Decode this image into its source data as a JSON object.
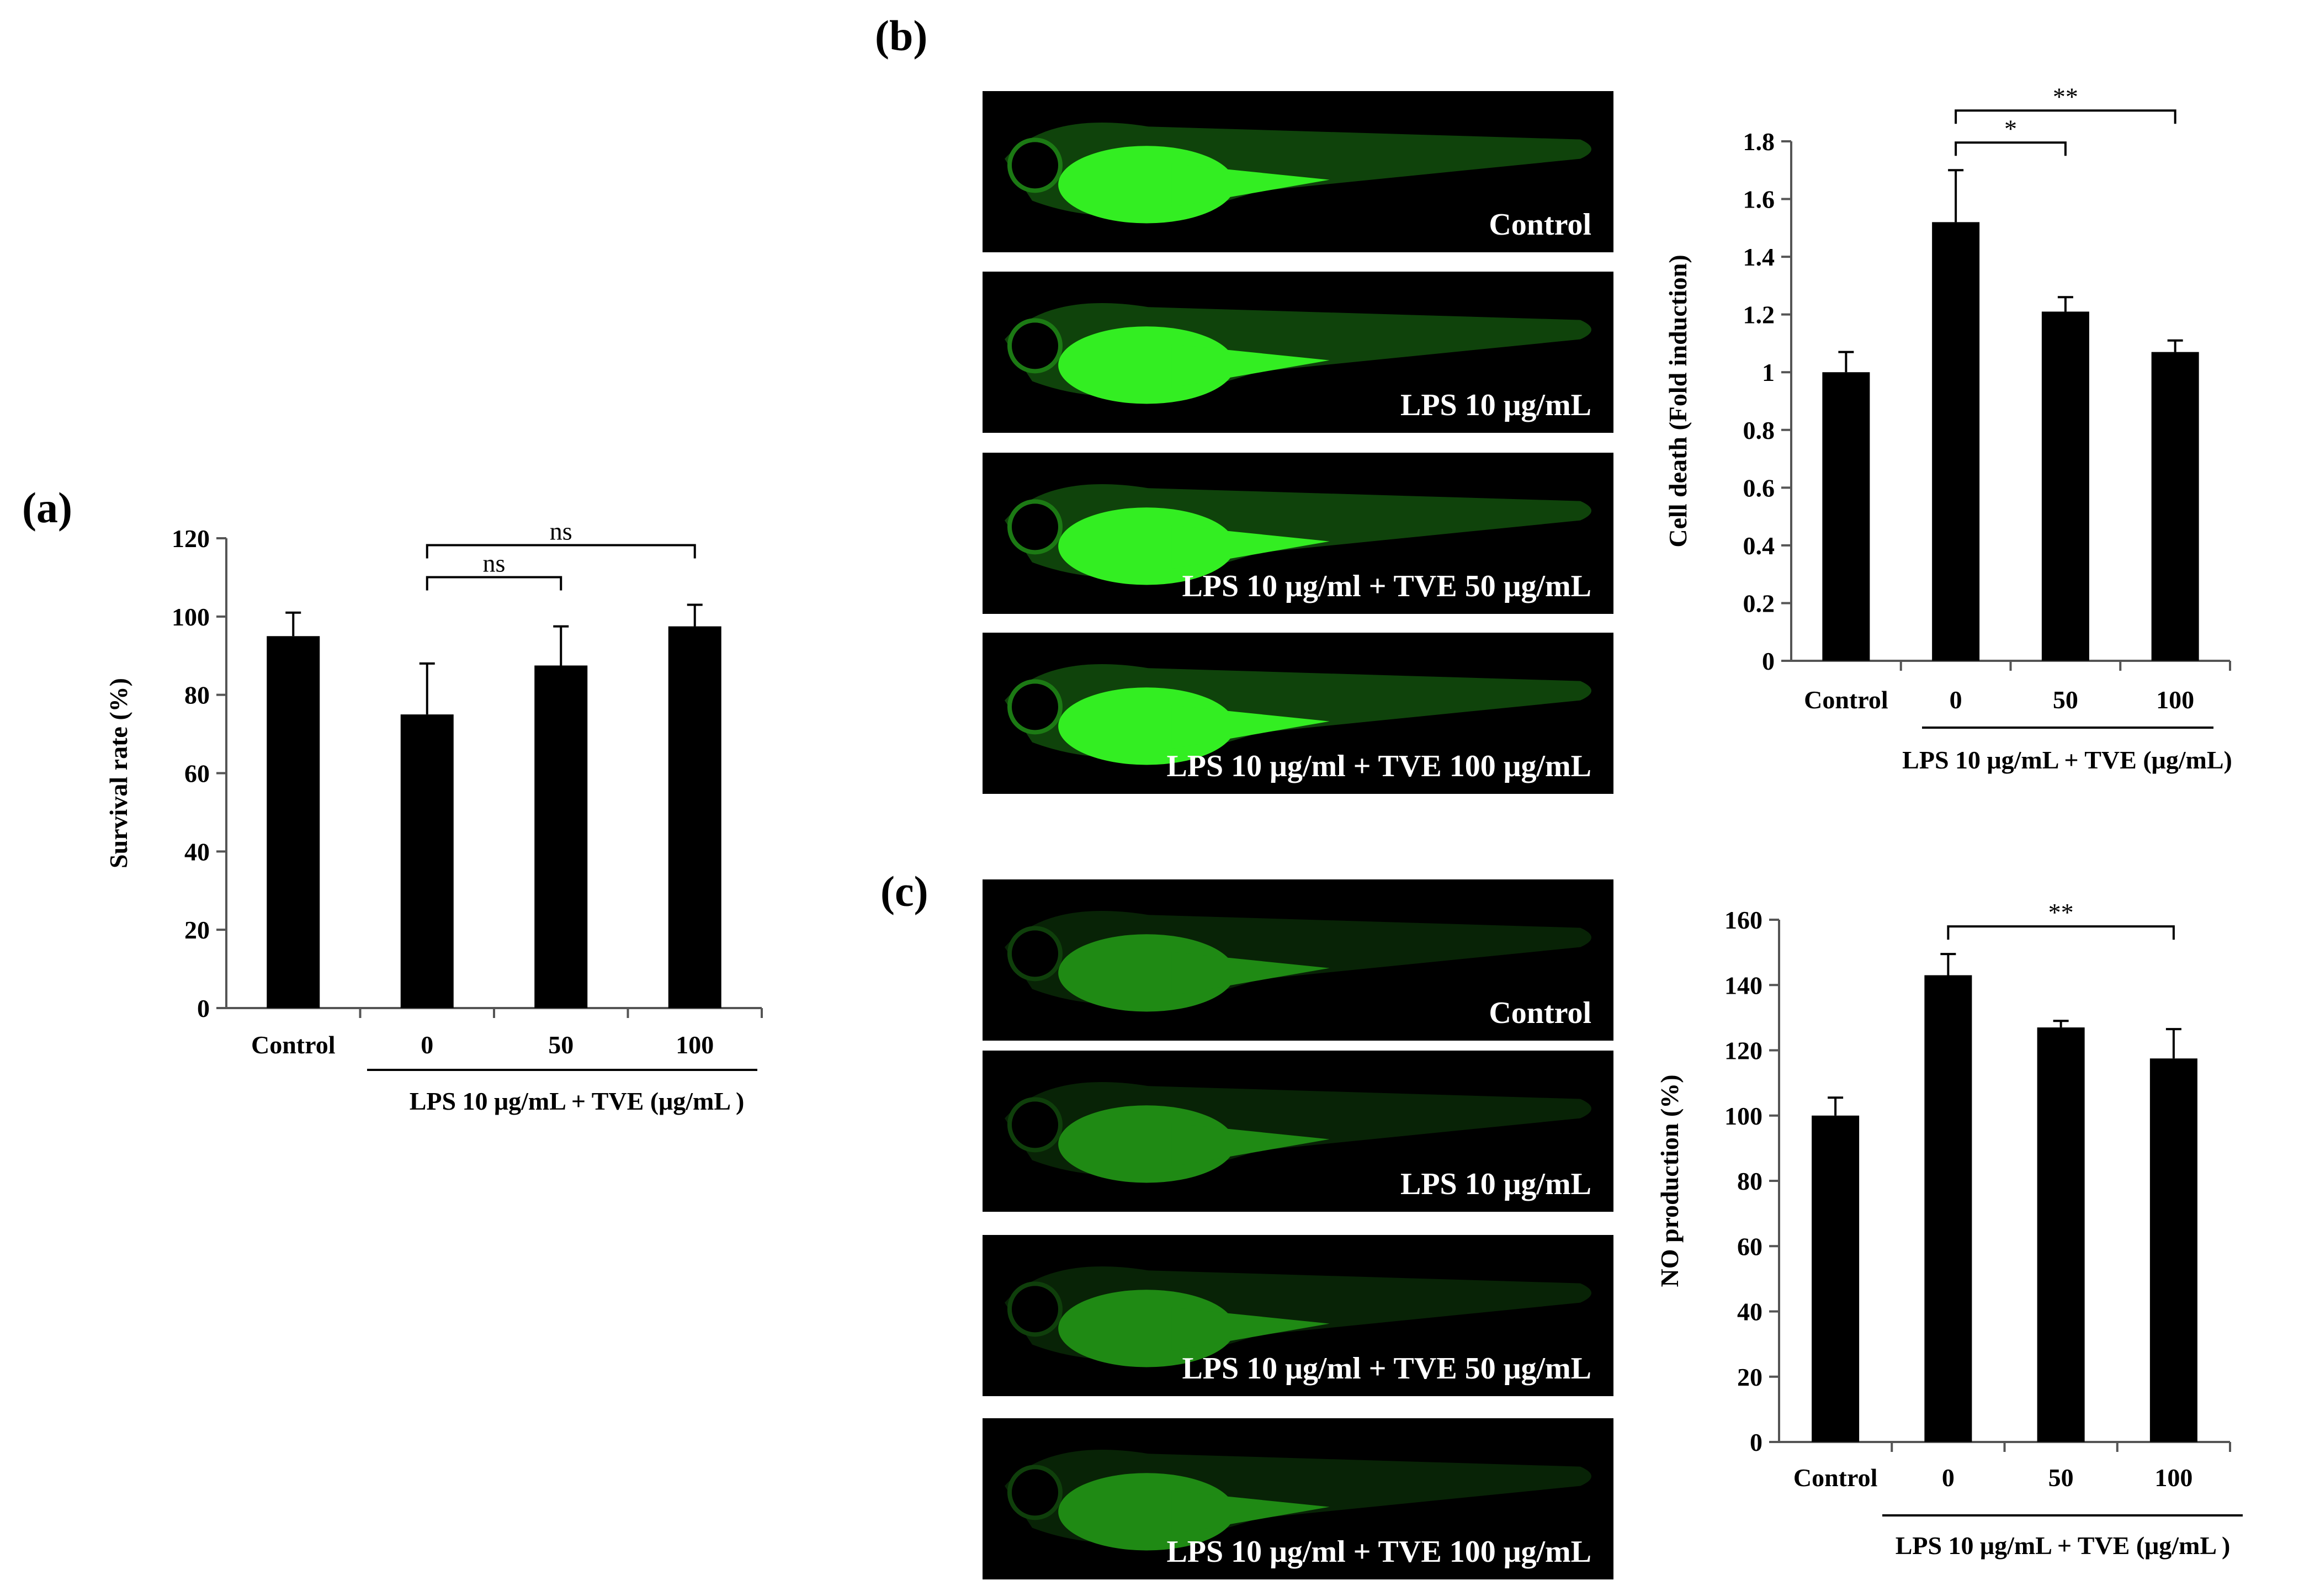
{
  "figure": {
    "panels": [
      {
        "label": "(a)"
      },
      {
        "label": "(b)"
      },
      {
        "label": "(c)"
      }
    ],
    "image_captions_b": [
      "Control",
      "LPS 10 μg/mL",
      "LPS 10 μg/ml + TVE 50 μg/mL",
      "LPS 10 μg/ml + TVE 100 μg/mL"
    ],
    "image_captions_c": [
      "Control",
      "LPS 10 μg/mL",
      "LPS 10 μg/ml + TVE 50 μg/mL",
      "LPS 10 μg/ml + TVE 100 μg/mL"
    ],
    "image_colors": {
      "fluorescence_b": "#33ee22",
      "fluorescence_c": "#1f8a14",
      "background": "#000000"
    }
  },
  "chart_data": [
    {
      "panel": "(a)",
      "type": "bar",
      "categories": [
        "Control",
        "0",
        "50",
        "100"
      ],
      "values": [
        95,
        75,
        87.5,
        97.5
      ],
      "errors": [
        6,
        13,
        10,
        5.5
      ],
      "ylabel": "Survival rate (%)",
      "ylim": [
        0,
        120
      ],
      "yticks": [
        "0",
        "20",
        "40",
        "60",
        "80",
        "100",
        "120"
      ],
      "group_label": "LPS 10 μg/mL + TVE (μg/mL )",
      "significance": [
        {
          "from": 1,
          "to": 2,
          "label": "ns"
        },
        {
          "from": 1,
          "to": 3,
          "label": "ns"
        }
      ],
      "bar_color": "#000000"
    },
    {
      "panel": "(b)",
      "type": "bar",
      "categories": [
        "Control",
        "0",
        "50",
        "100"
      ],
      "values": [
        1.0,
        1.52,
        1.21,
        1.07
      ],
      "errors": [
        0.07,
        0.18,
        0.05,
        0.04
      ],
      "ylabel": "Cell death (Fold induction)",
      "ylim": [
        0,
        1.8
      ],
      "yticks": [
        "0",
        "0.2",
        "0.4",
        "0.6",
        "0.8",
        "1",
        "1.2",
        "1.4",
        "1.6",
        "1.8"
      ],
      "group_label": "LPS 10 μg/mL + TVE (μg/mL)",
      "significance": [
        {
          "from": 1,
          "to": 2,
          "label": "*"
        },
        {
          "from": 1,
          "to": 3,
          "label": "**"
        }
      ],
      "bar_color": "#000000"
    },
    {
      "panel": "(c)",
      "type": "bar",
      "categories": [
        "Control",
        "0",
        "50",
        "100"
      ],
      "values": [
        100,
        143,
        127,
        117.5
      ],
      "errors": [
        5.5,
        6.5,
        2,
        9
      ],
      "ylabel": "NO production (%)",
      "ylim": [
        0,
        160
      ],
      "yticks": [
        "0",
        "20",
        "40",
        "60",
        "80",
        "100",
        "120",
        "140",
        "160"
      ],
      "group_label": "LPS 10 μg/mL + TVE (μg/mL )",
      "significance": [
        {
          "from": 1,
          "to": 3,
          "label": "**"
        }
      ],
      "bar_color": "#000000"
    }
  ]
}
